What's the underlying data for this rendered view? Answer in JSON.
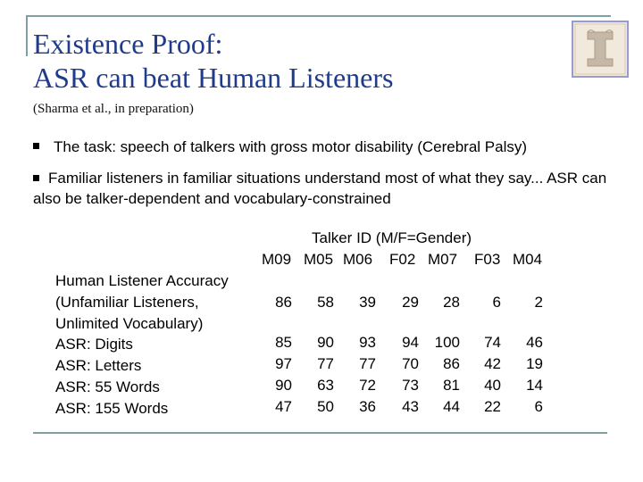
{
  "title": {
    "line1": "Existence Proof:",
    "line2": "ASR can beat Human Listeners"
  },
  "subtitle": "(Sharma et al., in preparation)",
  "bullets": [
    "The task: speech of talkers with gross motor disability (Cerebral Palsy)",
    "Familiar listeners in familiar situations understand most of what they say... ASR can also be talker-dependent and vocabulary-constrained"
  ],
  "logo": {
    "glyph": "I",
    "icon": "university-block-i-logo",
    "colors": {
      "background": "#f2e9dd",
      "border": "#9a9ad0",
      "letter": "#c5b8a6"
    }
  },
  "table": {
    "header": "Talker ID (M/F=Gender)",
    "columns": [
      "M09",
      "M05",
      "M06",
      "F02",
      "M07",
      "F03",
      "M04"
    ],
    "rows": [
      {
        "label_lines": [
          "Human Listener Accuracy",
          "(Unfamiliar Listeners,",
          "Unlimited Vocabulary)"
        ],
        "values": [
          "86",
          "58",
          "39",
          "29",
          "28",
          "6",
          "2"
        ]
      },
      {
        "label_lines": [
          "ASR: Digits"
        ],
        "values": [
          "85",
          "90",
          "93",
          "94",
          "100",
          "74",
          "46"
        ]
      },
      {
        "label_lines": [
          "ASR: Letters"
        ],
        "values": [
          "97",
          "77",
          "77",
          "70",
          "86",
          "42",
          "19"
        ]
      },
      {
        "label_lines": [
          "ASR: 55 Words"
        ],
        "values": [
          "90",
          "63",
          "72",
          "73",
          "81",
          "40",
          "14"
        ]
      },
      {
        "label_lines": [
          "ASR: 155 Words"
        ],
        "values": [
          "47",
          "50",
          "36",
          "43",
          "44",
          "22",
          "6"
        ]
      }
    ]
  },
  "colors": {
    "title": "#1f3b8c",
    "rules": "#7f9fa0",
    "text": "#000000"
  }
}
